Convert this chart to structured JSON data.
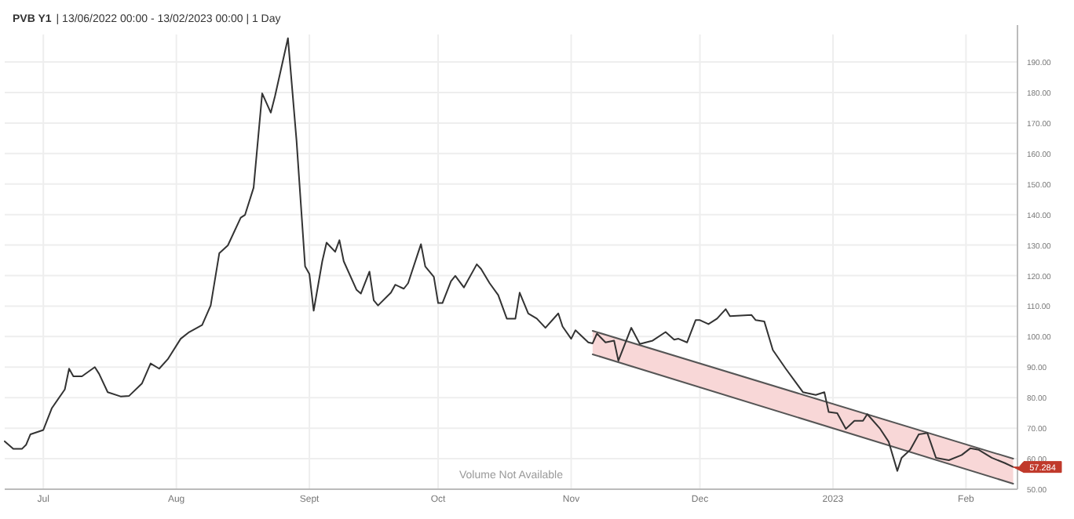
{
  "chart_data": {
    "type": "line",
    "title": "PVB Y1",
    "subtitle": "| 13/06/2022 00:00 - 13/02/2023 00:00 | 1 Day",
    "annotations": [
      "Volume Not Available",
      {
        "text": "57.284",
        "x": "2023-02-12",
        "y": 57.284
      }
    ],
    "xlim": [
      "2022-06-22",
      "2023-02-13"
    ],
    "xticks": [
      {
        "value": "2022-07-01",
        "label": "Jul"
      },
      {
        "value": "2022-08-01",
        "label": "Aug"
      },
      {
        "value": "2022-09-01",
        "label": "Sept"
      },
      {
        "value": "2022-10-01",
        "label": "Oct"
      },
      {
        "value": "2022-11-01",
        "label": "Nov"
      },
      {
        "value": "2022-12-01",
        "label": "Dec"
      },
      {
        "value": "2023-01-01",
        "label": "2023"
      },
      {
        "value": "2023-02-01",
        "label": "Feb"
      }
    ],
    "ylim": [
      50,
      199
    ],
    "yticks": [
      {
        "value": 50,
        "label": "50.00"
      },
      {
        "value": 60,
        "label": "60.00"
      },
      {
        "value": 70,
        "label": "70.00"
      },
      {
        "value": 80,
        "label": "80.00"
      },
      {
        "value": 90,
        "label": "90.00"
      },
      {
        "value": 100,
        "label": "100.00"
      },
      {
        "value": 110,
        "label": "110.00"
      },
      {
        "value": 120,
        "label": "120.00"
      },
      {
        "value": 130,
        "label": "130.00"
      },
      {
        "value": 140,
        "label": "140.00"
      },
      {
        "value": 150,
        "label": "150.00"
      },
      {
        "value": 160,
        "label": "160.00"
      },
      {
        "value": 170,
        "label": "170.00"
      },
      {
        "value": 180,
        "label": "180.00"
      },
      {
        "value": 190,
        "label": "190.00"
      }
    ],
    "grid": true,
    "series": [
      {
        "type": "line",
        "color": "#555555",
        "x": [
          "2022-11-06",
          "2023-02-12"
        ],
        "values": [
          101.9,
          60
        ]
      },
      {
        "type": "line",
        "color": "#555555",
        "x": [
          "2022-11-06",
          "2023-02-12"
        ],
        "values": [
          94.2,
          51.8
        ]
      },
      {
        "color": "#333333",
        "x": [
          "2022-06-22",
          "2022-06-24",
          "2022-06-26",
          "2022-06-27",
          "2022-06-28",
          "2022-07-01",
          "2022-07-03",
          "2022-07-06",
          "2022-07-07",
          "2022-07-08",
          "2022-07-10",
          "2022-07-13",
          "2022-07-14",
          "2022-07-16",
          "2022-07-19",
          "2022-07-21",
          "2022-07-24",
          "2022-07-26",
          "2022-07-28",
          "2022-07-30",
          "2022-08-02",
          "2022-08-04",
          "2022-08-07",
          "2022-08-09",
          "2022-08-11",
          "2022-08-13",
          "2022-08-16",
          "2022-08-17",
          "2022-08-19",
          "2022-08-21",
          "2022-08-23",
          "2022-08-24",
          "2022-08-27",
          "2022-08-29",
          "2022-08-31",
          "2022-09-01",
          "2022-09-02",
          "2022-09-04",
          "2022-09-05",
          "2022-09-07",
          "2022-09-08",
          "2022-09-09",
          "2022-09-12",
          "2022-09-13",
          "2022-09-15",
          "2022-09-16",
          "2022-09-17",
          "2022-09-20",
          "2022-09-21",
          "2022-09-23",
          "2022-09-24",
          "2022-09-27",
          "2022-09-28",
          "2022-09-30",
          "2022-10-01",
          "2022-10-02",
          "2022-10-04",
          "2022-10-05",
          "2022-10-07",
          "2022-10-10",
          "2022-10-11",
          "2022-10-13",
          "2022-10-15",
          "2022-10-17",
          "2022-10-19",
          "2022-10-20",
          "2022-10-22",
          "2022-10-24",
          "2022-10-26",
          "2022-10-29",
          "2022-10-30",
          "2022-11-01",
          "2022-11-02",
          "2022-11-05",
          "2022-11-06",
          "2022-11-07",
          "2022-11-09",
          "2022-11-11",
          "2022-11-12",
          "2022-11-15",
          "2022-11-17",
          "2022-11-20",
          "2022-11-23",
          "2022-11-25",
          "2022-11-26",
          "2022-11-28",
          "2022-11-30",
          "2022-12-01",
          "2022-12-03",
          "2022-12-05",
          "2022-12-07",
          "2022-12-08",
          "2022-12-13",
          "2022-12-14",
          "2022-12-16",
          "2022-12-18",
          "2022-12-21",
          "2022-12-25",
          "2022-12-28",
          "2022-12-30",
          "2022-12-31",
          "2023-01-02",
          "2023-01-04",
          "2023-01-06",
          "2023-01-08",
          "2023-01-09",
          "2023-01-12",
          "2023-01-14",
          "2023-01-16",
          "2023-01-17",
          "2023-01-19",
          "2023-01-21",
          "2023-01-23",
          "2023-01-25",
          "2023-01-28",
          "2023-01-31",
          "2023-02-02",
          "2023-02-04",
          "2023-02-07",
          "2023-02-10",
          "2023-02-12"
        ],
        "values": [
          65.7,
          63.2,
          63.2,
          64.6,
          68,
          69.4,
          76.6,
          82.7,
          89.5,
          87,
          87,
          90,
          87.8,
          81.8,
          80.4,
          80.6,
          84.7,
          91.2,
          89.5,
          92.6,
          99.3,
          101.5,
          103.8,
          110.2,
          127.3,
          129.9,
          139,
          139.9,
          148.8,
          179.7,
          173.4,
          178.9,
          197.8,
          164.3,
          123,
          120.5,
          108.5,
          124.7,
          130.8,
          127.8,
          131.6,
          124.7,
          115.3,
          114.1,
          121.3,
          111.9,
          110.2,
          114.4,
          117,
          115.7,
          117.5,
          130.3,
          123,
          119.6,
          111,
          111,
          118.2,
          119.9,
          116.1,
          123.7,
          122.2,
          117.5,
          113.6,
          105.9,
          105.9,
          114.4,
          107.6,
          105.9,
          102.9,
          107.6,
          103.3,
          99.3,
          102.1,
          98.1,
          97.8,
          101,
          98.1,
          98.7,
          92.1,
          102.9,
          97.6,
          98.7,
          101.5,
          99,
          99.3,
          98.1,
          105.4,
          105.4,
          104.1,
          105.9,
          109,
          106.7,
          107.1,
          105.4,
          105,
          95.6,
          89.5,
          81.8,
          80.9,
          81.8,
          75.3,
          74.9,
          69.8,
          72.4,
          72.4,
          74.6,
          69.8,
          65.5,
          56,
          60.3,
          62.9,
          68,
          68.4,
          60.3,
          59.5,
          61.2,
          63.4,
          62.9,
          60.3,
          58.6,
          57.3
        ]
      }
    ]
  }
}
